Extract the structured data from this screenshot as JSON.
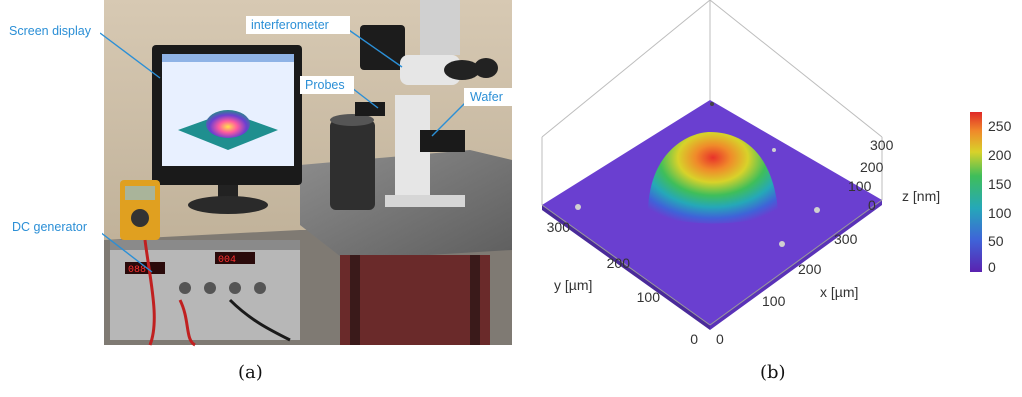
{
  "panel_a": {
    "callouts": {
      "screen_display": "Screen display",
      "interferometer": "interferometer",
      "probes": "Probes",
      "wafer": "Wafer",
      "dc_generator": "DC generator"
    },
    "caption": "(a)"
  },
  "panel_b": {
    "axes": {
      "x_label": "x [µm]",
      "y_label": "y [µm]",
      "z_label": "z [nm]",
      "x_ticks": [
        "0",
        "100",
        "200",
        "300"
      ],
      "y_ticks": [
        "0",
        "100",
        "200",
        "300"
      ],
      "z_ticks": [
        "0",
        "100",
        "200",
        "300"
      ]
    },
    "colorbar_ticks": [
      "250",
      "200",
      "150",
      "100",
      "50",
      "0"
    ],
    "caption": "(b)"
  },
  "colors": {
    "callout": "#2b8fd6",
    "surface_base": "#6a3fd0"
  }
}
